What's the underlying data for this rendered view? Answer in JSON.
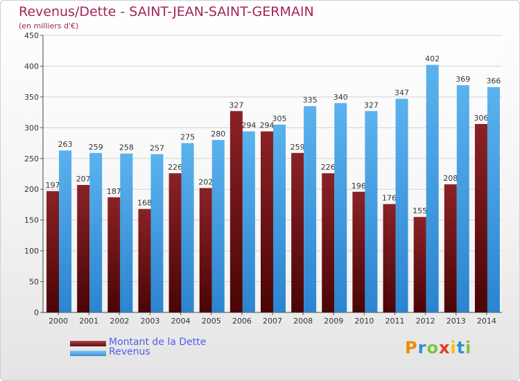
{
  "chart_data": {
    "type": "bar",
    "title": "Revenus/Dette - SAINT-JEAN-SAINT-GERMAIN",
    "subtitle": "(en milliers d'€)",
    "categories": [
      "2000",
      "2001",
      "2002",
      "2003",
      "2004",
      "2005",
      "2006",
      "2007",
      "2008",
      "2009",
      "2010",
      "2011",
      "2012",
      "2013",
      "2014"
    ],
    "series": [
      {
        "name": "Montant de la Dette",
        "color": "#7a1518",
        "values": [
          197,
          207,
          187,
          168,
          226,
          202,
          327,
          294,
          259,
          226,
          196,
          176,
          155,
          208,
          306
        ]
      },
      {
        "name": "Revenus",
        "color": "#4aa3e6",
        "values": [
          263,
          259,
          258,
          257,
          275,
          280,
          294,
          305,
          335,
          340,
          327,
          347,
          402,
          369,
          366
        ]
      }
    ],
    "ylim": [
      0,
      450
    ],
    "yticks": [
      0,
      50,
      100,
      150,
      200,
      250,
      300,
      350,
      400,
      450
    ],
    "grid": true,
    "legend_position": "bottom-left"
  },
  "logo": {
    "letters": [
      "P",
      "r",
      "o",
      "x",
      "i",
      "t",
      "i"
    ],
    "colors": [
      "#f08a00",
      "#2f8fd8",
      "#7cc63f",
      "#e43a2a",
      "#f0c400",
      "#2f8fd8",
      "#7cc63f"
    ]
  }
}
